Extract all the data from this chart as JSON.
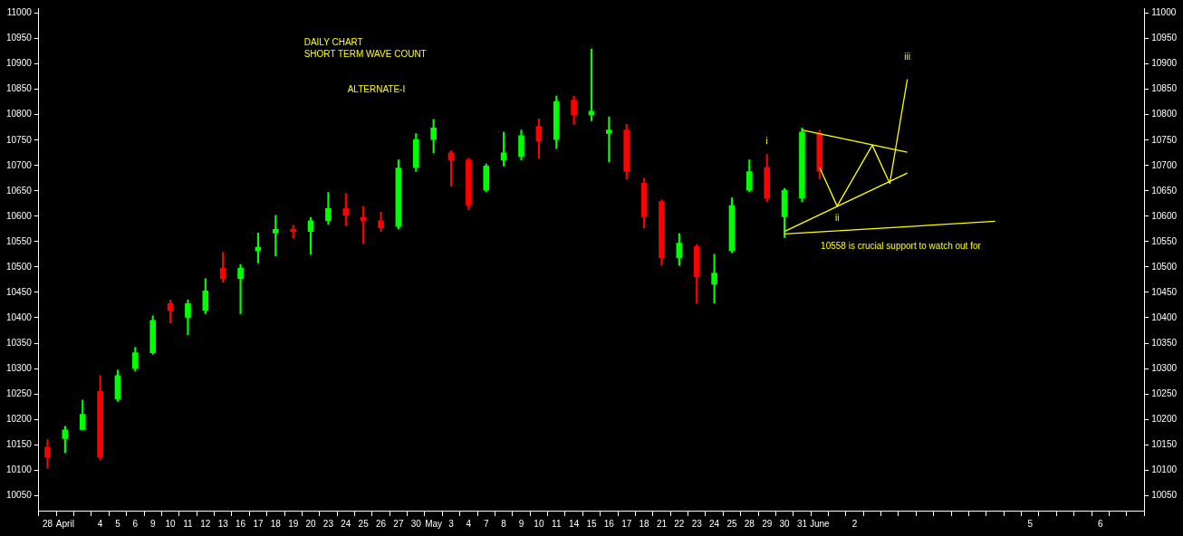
{
  "chart_data": {
    "type": "candlestick",
    "title": "DAILY CHART",
    "subtitle": "SHORT TERM WAVE COUNT",
    "categories": [
      "28",
      "April",
      null,
      "4",
      "5",
      "6",
      "9",
      "10",
      "11",
      "12",
      "13",
      "16",
      "17",
      "18",
      "19",
      "20",
      "23",
      "24",
      "25",
      "26",
      "27",
      "30",
      "May",
      "3",
      "4",
      "7",
      "8",
      "9",
      "10",
      "11",
      "14",
      "15",
      "16",
      "17",
      "18",
      "21",
      "22",
      "23",
      "24",
      "25",
      "28",
      "29",
      "30",
      "31",
      "June",
      null,
      "2",
      null,
      null,
      null,
      null,
      null,
      null,
      null,
      null,
      null,
      "5",
      null,
      null,
      null,
      "6",
      null,
      null
    ],
    "ohlc": [
      [
        10145,
        10160,
        10103,
        10125
      ],
      [
        10162,
        10186,
        10134,
        10179
      ],
      [
        10180,
        10238,
        10179,
        10210
      ],
      [
        10255,
        10286,
        10120,
        10125
      ],
      [
        10240,
        10297,
        10235,
        10286
      ],
      [
        10300,
        10342,
        10295,
        10331
      ],
      [
        10331,
        10404,
        10328,
        10395
      ],
      [
        10428,
        10435,
        10390,
        10415
      ],
      [
        10401,
        10435,
        10366,
        10428
      ],
      [
        10415,
        10477,
        10408,
        10453
      ],
      [
        10498,
        10529,
        10470,
        10477
      ],
      [
        10477,
        10505,
        10408,
        10498
      ],
      [
        10532,
        10567,
        10508,
        10539
      ],
      [
        10567,
        10602,
        10522,
        10574
      ],
      [
        10574,
        10582,
        10557,
        10570
      ],
      [
        10570,
        10598,
        10525,
        10591
      ],
      [
        10591,
        10647,
        10584,
        10615
      ],
      [
        10615,
        10645,
        10581,
        10602
      ],
      [
        10598,
        10619,
        10546,
        10591
      ],
      [
        10591,
        10608,
        10570,
        10577
      ],
      [
        10580,
        10711,
        10575,
        10695
      ],
      [
        10696,
        10763,
        10688,
        10751
      ],
      [
        10751,
        10791,
        10725,
        10774
      ],
      [
        10725,
        10729,
        10659,
        10711
      ],
      [
        10711,
        10714,
        10613,
        10622
      ],
      [
        10651,
        10703,
        10648,
        10699
      ],
      [
        10711,
        10766,
        10699,
        10725
      ],
      [
        10718,
        10770,
        10711,
        10759
      ],
      [
        10777,
        10792,
        10714,
        10748
      ],
      [
        10751,
        10837,
        10733,
        10826
      ],
      [
        10829,
        10837,
        10781,
        10800
      ],
      [
        10800,
        10929,
        10788,
        10807
      ],
      [
        10763,
        10796,
        10707,
        10770
      ],
      [
        10770,
        10781,
        10673,
        10688
      ],
      [
        10665,
        10675,
        10577,
        10599
      ],
      [
        10629,
        10632,
        10503,
        10518
      ],
      [
        10518,
        10566,
        10503,
        10547
      ],
      [
        10540,
        10544,
        10429,
        10481
      ],
      [
        10466,
        10525,
        10429,
        10488
      ],
      [
        10532,
        10636,
        10528,
        10621
      ],
      [
        10651,
        10711,
        10648,
        10688
      ],
      [
        10696,
        10722,
        10629,
        10636
      ],
      [
        10599,
        10655,
        10558,
        10651
      ],
      [
        10636,
        10774,
        10629,
        10766
      ],
      [
        10763,
        10770,
        10674,
        10688
      ],
      null,
      null,
      null,
      null,
      null,
      null,
      null,
      null,
      null,
      null,
      null,
      null,
      null,
      null,
      null,
      null,
      null,
      null
    ],
    "colors": [
      "#ff0000",
      "#00ff00",
      "#00ff00",
      "#ff0000",
      "#00ff00",
      "#00ff00",
      "#00ff00",
      "#ff0000",
      "#00ff00",
      "#00ff00",
      "#ff0000",
      "#00ff00",
      "#00ff00",
      "#00ff00",
      "#ff0000",
      "#00ff00",
      "#00ff00",
      "#ff0000",
      "#ff0000",
      "#ff0000",
      "#00ff00",
      "#00ff00",
      "#00ff00",
      "#ff0000",
      "#ff0000",
      "#00ff00",
      "#00ff00",
      "#00ff00",
      "#ff0000",
      "#00ff00",
      "#ff0000",
      "#00ff00",
      "#00ff00",
      "#ff0000",
      "#ff0000",
      "#ff0000",
      "#00ff00",
      "#ff0000",
      "#00ff00",
      "#00ff00",
      "#00ff00",
      "#ff0000",
      "#00ff00",
      "#00ff00",
      "#ff0000",
      null,
      null,
      null,
      null,
      null,
      null,
      null,
      null,
      null,
      null,
      null,
      null,
      null,
      null,
      null,
      null,
      null,
      null
    ],
    "series": [
      {
        "type": "line",
        "color": "#ffff00",
        "values": [
          null,
          null,
          null,
          null,
          null,
          null,
          null,
          null,
          null,
          null,
          null,
          null,
          null,
          null,
          null,
          null,
          null,
          null,
          null,
          null,
          null,
          null,
          null,
          null,
          null,
          null,
          null,
          null,
          null,
          null,
          null,
          null,
          null,
          null,
          null,
          null,
          null,
          null,
          null,
          null,
          null,
          null,
          10565,
          null,
          null,
          null,
          null,
          null,
          null,
          null,
          null,
          null,
          null,
          null,
          10590,
          null,
          null,
          null,
          null,
          null,
          null,
          null,
          null
        ]
      },
      {
        "type": "line",
        "color": "#ffff00",
        "values": [
          null,
          null,
          null,
          null,
          null,
          null,
          null,
          null,
          null,
          null,
          null,
          null,
          null,
          null,
          null,
          null,
          null,
          null,
          null,
          null,
          null,
          null,
          null,
          null,
          null,
          null,
          null,
          null,
          null,
          null,
          null,
          null,
          null,
          null,
          null,
          null,
          null,
          null,
          null,
          null,
          null,
          null,
          10570,
          null,
          null,
          null,
          null,
          null,
          null,
          10685,
          null,
          null,
          null,
          null,
          null,
          null,
          null,
          null,
          null,
          null,
          null,
          null,
          null
        ]
      },
      {
        "type": "line",
        "color": "#ffff00",
        "values": [
          null,
          null,
          null,
          null,
          null,
          null,
          null,
          null,
          null,
          null,
          null,
          null,
          null,
          null,
          null,
          null,
          null,
          null,
          null,
          null,
          null,
          null,
          null,
          null,
          null,
          null,
          null,
          null,
          null,
          null,
          null,
          null,
          null,
          null,
          null,
          null,
          null,
          null,
          null,
          null,
          null,
          null,
          null,
          10770,
          null,
          null,
          null,
          null,
          null,
          10726,
          null,
          null,
          null,
          null,
          null,
          null,
          null,
          null,
          null,
          null,
          null,
          null,
          null
        ]
      },
      {
        "type": "line",
        "color": "#ffff00",
        "values": [
          null,
          null,
          null,
          null,
          null,
          null,
          null,
          null,
          null,
          null,
          null,
          null,
          null,
          null,
          null,
          null,
          null,
          null,
          null,
          null,
          null,
          null,
          null,
          null,
          null,
          null,
          null,
          null,
          null,
          null,
          null,
          null,
          null,
          null,
          null,
          null,
          null,
          null,
          null,
          null,
          null,
          null,
          null,
          null,
          10696,
          10620,
          null,
          10740,
          10665,
          10870,
          null,
          null,
          null,
          null,
          null,
          null,
          null,
          null,
          null,
          null,
          null,
          null,
          null
        ]
      }
    ],
    "ylim": [
      10020,
      11010
    ],
    "yticks": [
      10050,
      10100,
      10150,
      10200,
      10250,
      10300,
      10350,
      10400,
      10450,
      10500,
      10550,
      10600,
      10650,
      10700,
      10750,
      10800,
      10850,
      10900,
      10950,
      11000
    ],
    "y2lim": [
      10020,
      11010
    ],
    "y2ticks": [
      10050,
      10100,
      10150,
      10200,
      10250,
      10300,
      10350,
      10400,
      10450,
      10500,
      10550,
      10600,
      10650,
      10700,
      10750,
      10800,
      10850,
      10900,
      10950,
      11000
    ],
    "annotations": [
      "ALTERNATE-I",
      {
        "text": "i",
        "x": "29",
        "y": 10722
      },
      "ii",
      "iii",
      "10558 is crucial support to watch out for"
    ],
    "grid": false,
    "legend": false,
    "marker": "none",
    "line_style": "solid"
  }
}
